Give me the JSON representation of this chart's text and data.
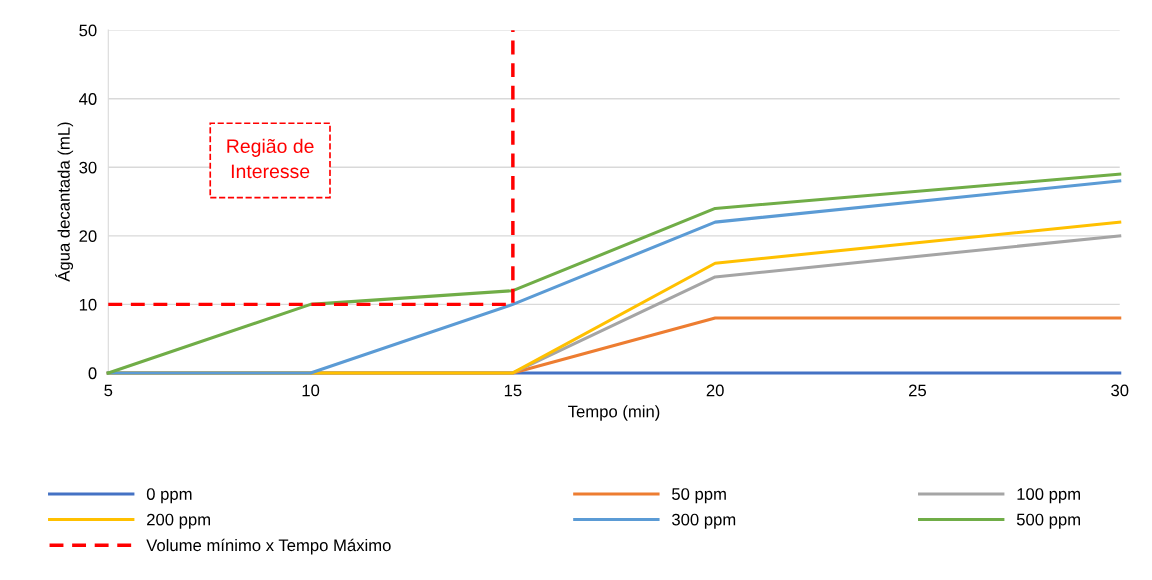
{
  "chart_data": {
    "type": "line",
    "xlabel": "Tempo (min)",
    "ylabel": "Água decantada (mL)",
    "xlim": [
      5,
      30
    ],
    "xticks": [
      5,
      10,
      15,
      20,
      25,
      30
    ],
    "ylim": [
      0,
      50
    ],
    "yticks": [
      0,
      10,
      20,
      30,
      40,
      50
    ],
    "grid": "y",
    "legend": "bottom",
    "annotations": [
      "Região de\nInteresse"
    ],
    "series": [
      {
        "name": "0 ppm",
        "color": "#4472c4",
        "x": [
          5,
          10,
          15,
          20,
          30
        ],
        "values": [
          0,
          0,
          0,
          0,
          0
        ]
      },
      {
        "name": "50 ppm",
        "color": "#ed7d31",
        "x": [
          5,
          10,
          15,
          20,
          30
        ],
        "values": [
          0,
          0,
          0,
          8,
          8
        ]
      },
      {
        "name": "100 ppm",
        "color": "#a5a5a5",
        "x": [
          5,
          10,
          15,
          20,
          30
        ],
        "values": [
          0,
          0,
          0,
          14,
          20
        ]
      },
      {
        "name": "200 ppm",
        "color": "#ffc000",
        "x": [
          5,
          10,
          15,
          20,
          30
        ],
        "values": [
          0,
          0,
          0,
          16,
          22
        ]
      },
      {
        "name": "300 ppm",
        "color": "#5b9bd5",
        "x": [
          5,
          10,
          15,
          20,
          30
        ],
        "values": [
          0,
          0,
          10,
          22,
          28
        ]
      },
      {
        "name": "500 ppm",
        "color": "#70ad47",
        "x": [
          5,
          10,
          15,
          20,
          30
        ],
        "values": [
          0,
          10,
          12,
          24,
          29
        ]
      },
      {
        "name": "Volume mínimo x Tempo Máximo",
        "color": "#ff0000",
        "line_style": "dashed",
        "x": [
          5,
          15,
          15
        ],
        "values": [
          10,
          10,
          50
        ]
      }
    ]
  }
}
